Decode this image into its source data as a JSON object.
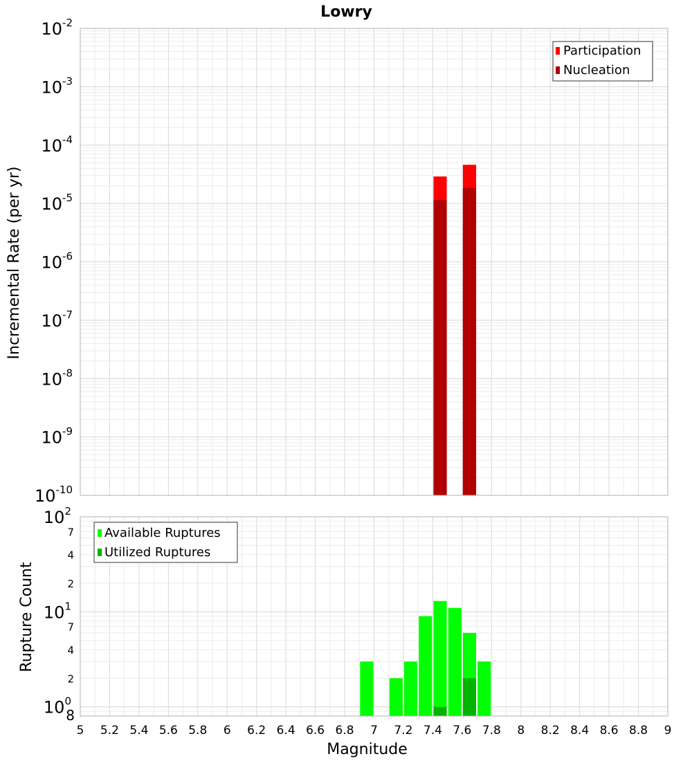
{
  "chart_data": [
    {
      "type": "bar",
      "title": "Lowry",
      "xlabel": "",
      "ylabel": "Incremental Rate (per yr)",
      "yscale": "log",
      "ylim": [
        1e-10,
        0.01
      ],
      "xlim": [
        5,
        9
      ],
      "grid": true,
      "legend_position": "top-right",
      "y_ticks": [
        {
          "base": "10",
          "exp": "-10"
        },
        {
          "base": "10",
          "exp": "-9"
        },
        {
          "base": "10",
          "exp": "-8"
        },
        {
          "base": "10",
          "exp": "-7"
        },
        {
          "base": "10",
          "exp": "-6"
        },
        {
          "base": "10",
          "exp": "-5"
        },
        {
          "base": "10",
          "exp": "-4"
        },
        {
          "base": "10",
          "exp": "-3"
        },
        {
          "base": "10",
          "exp": "-2"
        }
      ],
      "series": [
        {
          "name": "Participation",
          "color": "#ff0000",
          "x": [
            7.45,
            7.65
          ],
          "values": [
            2.9e-05,
            4.6e-05
          ]
        },
        {
          "name": "Nucleation",
          "color": "#b00000",
          "x": [
            7.45,
            7.65
          ],
          "values": [
            1.15e-05,
            1.85e-05
          ]
        }
      ]
    },
    {
      "type": "bar",
      "xlabel": "Magnitude",
      "ylabel": "Rupture Count",
      "yscale": "log",
      "ylim": [
        0.8,
        100
      ],
      "xlim": [
        5,
        9
      ],
      "grid": true,
      "legend_position": "top-left",
      "x_ticks": [
        "5",
        "5.2",
        "5.4",
        "5.6",
        "5.8",
        "6",
        "6.2",
        "6.4",
        "6.6",
        "6.8",
        "7",
        "7.2",
        "7.4",
        "7.6",
        "7.8",
        "8",
        "8.2",
        "8.4",
        "8.6",
        "8.8",
        "9"
      ],
      "y_major_ticks": [
        {
          "base": "10",
          "exp": "0"
        },
        {
          "base": "10",
          "exp": "1"
        },
        {
          "base": "10",
          "exp": "2"
        }
      ],
      "y_minor_labels": [
        "8",
        "2",
        "4",
        "7",
        "2",
        "4",
        "7"
      ],
      "series": [
        {
          "name": "Available Ruptures",
          "color": "#00ff00",
          "x": [
            6.95,
            7.15,
            7.25,
            7.35,
            7.45,
            7.55,
            7.65,
            7.75
          ],
          "values": [
            3,
            2,
            3,
            9,
            13,
            11,
            6,
            3
          ]
        },
        {
          "name": "Utilized Ruptures",
          "color": "#00b400",
          "x": [
            7.45,
            7.65
          ],
          "values": [
            1,
            2
          ]
        }
      ]
    }
  ]
}
